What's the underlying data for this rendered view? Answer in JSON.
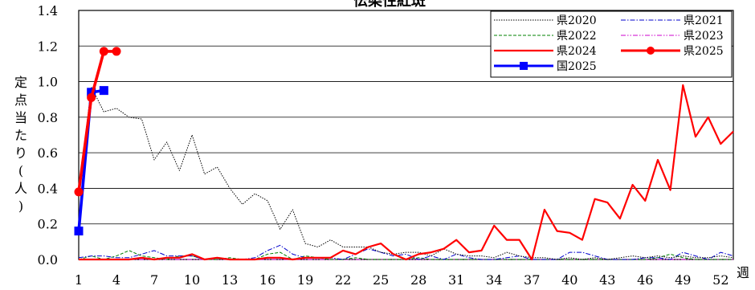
{
  "chart_data": {
    "type": "line",
    "title": "伝染性紅斑",
    "ylabel": "定点当たり(人)",
    "xlabel": "週",
    "ylim": [
      0,
      1.4
    ],
    "xlim": [
      1,
      53
    ],
    "y_ticks": [
      "0.0",
      "0.2",
      "0.4",
      "0.6",
      "0.8",
      "1.0",
      "1.2",
      "1.4"
    ],
    "x_ticks": [
      "1",
      "4",
      "7",
      "10",
      "13",
      "16",
      "19",
      "22",
      "25",
      "28",
      "31",
      "34",
      "37",
      "40",
      "43",
      "46",
      "49",
      "52"
    ],
    "grid": true,
    "legend_position": "top-right",
    "series": [
      {
        "name": "県2020",
        "color": "#000000",
        "style": "dotted-thin",
        "x": [
          1,
          2,
          3,
          4,
          5,
          6,
          7,
          8,
          9,
          10,
          11,
          12,
          13,
          14,
          15,
          16,
          17,
          18,
          19,
          20,
          21,
          22,
          23,
          24,
          25,
          26,
          27,
          28,
          29,
          30,
          31,
          32,
          33,
          34,
          35,
          36,
          37,
          38,
          39,
          40,
          41,
          42,
          43,
          44,
          45,
          46,
          47,
          48,
          49,
          50,
          51,
          52,
          53
        ],
        "y": [
          0.38,
          0.97,
          0.83,
          0.85,
          0.8,
          0.79,
          0.56,
          0.66,
          0.5,
          0.7,
          0.48,
          0.52,
          0.4,
          0.31,
          0.37,
          0.33,
          0.17,
          0.28,
          0.09,
          0.07,
          0.11,
          0.07,
          0.07,
          0.07,
          0.04,
          0.03,
          0.04,
          0.04,
          0.02,
          0.06,
          0.03,
          0.02,
          0.02,
          0.01,
          0.04,
          0.02,
          0.01,
          0.01,
          0.0,
          0.01,
          0.0,
          0.01,
          0.0,
          0.01,
          0.02,
          0.01,
          0.02,
          0.01,
          0.02,
          0.01,
          0.01,
          0.02,
          0.01
        ]
      },
      {
        "name": "県2021",
        "color": "#0000cc",
        "style": "dashdot-thin",
        "x": [
          1,
          2,
          3,
          4,
          5,
          6,
          7,
          8,
          9,
          10,
          11,
          12,
          13,
          14,
          15,
          16,
          17,
          18,
          19,
          20,
          21,
          22,
          23,
          24,
          25,
          26,
          27,
          28,
          29,
          30,
          31,
          32,
          33,
          34,
          35,
          36,
          37,
          38,
          39,
          40,
          41,
          42,
          43,
          44,
          45,
          46,
          47,
          48,
          49,
          50,
          51,
          52,
          53
        ],
        "y": [
          0.01,
          0.02,
          0.02,
          0.01,
          0.01,
          0.03,
          0.05,
          0.02,
          0.02,
          0.02,
          0.0,
          0.01,
          0.0,
          0.0,
          0.01,
          0.05,
          0.08,
          0.03,
          0.01,
          0.01,
          0.01,
          0.0,
          0.03,
          0.06,
          0.04,
          0.02,
          0.03,
          0.0,
          0.02,
          0.0,
          0.03,
          0.01,
          0.0,
          0.0,
          0.01,
          0.02,
          0.0,
          0.0,
          0.0,
          0.04,
          0.04,
          0.02,
          0.0,
          0.0,
          0.0,
          0.01,
          0.01,
          0.0,
          0.04,
          0.02,
          0.0,
          0.04,
          0.02
        ]
      },
      {
        "name": "県2022",
        "color": "#008000",
        "style": "dashed-thin",
        "x": [
          1,
          2,
          3,
          4,
          5,
          6,
          7,
          8,
          9,
          10,
          11,
          12,
          13,
          14,
          15,
          16,
          17,
          18,
          19,
          20,
          21,
          22,
          23,
          24,
          25,
          26,
          27,
          28,
          29,
          30,
          31,
          32,
          33,
          34,
          35,
          36,
          37,
          38,
          39,
          40,
          41,
          42,
          43,
          44,
          45,
          46,
          47,
          48,
          49,
          50,
          51,
          52,
          53
        ],
        "y": [
          0.0,
          0.02,
          0.0,
          0.02,
          0.05,
          0.02,
          0.01,
          0.0,
          0.02,
          0.02,
          0.0,
          0.0,
          0.01,
          0.0,
          0.0,
          0.03,
          0.04,
          0.0,
          0.02,
          0.01,
          0.0,
          0.0,
          0.01,
          0.0,
          0.0,
          0.0,
          0.0,
          0.01,
          0.0,
          0.0,
          0.0,
          0.0,
          0.0,
          0.0,
          0.0,
          0.0,
          0.0,
          0.0,
          0.0,
          0.0,
          0.0,
          0.0,
          0.0,
          0.0,
          0.0,
          0.0,
          0.01,
          0.03,
          0.01,
          0.0,
          0.0,
          0.0,
          0.0
        ]
      },
      {
        "name": "県2023",
        "color": "#cc00cc",
        "style": "dashdotdot-thin",
        "x": [
          1,
          2,
          3,
          4,
          5,
          6,
          7,
          8,
          9,
          10,
          11,
          12,
          13,
          14,
          15,
          16,
          17,
          18,
          19,
          20,
          21,
          22,
          23,
          24,
          25,
          26,
          27,
          28,
          29,
          30,
          31,
          32,
          33,
          34,
          35,
          36,
          37,
          38,
          39,
          40,
          41,
          42,
          43,
          44,
          45,
          46,
          47,
          48,
          49,
          50,
          51,
          52,
          53
        ],
        "y": [
          0.0,
          0.0,
          0.0,
          0.0,
          0.0,
          0.0,
          0.0,
          0.0,
          0.0,
          0.0,
          0.0,
          0.0,
          0.0,
          0.0,
          0.0,
          0.0,
          0.0,
          0.0,
          0.0,
          0.0,
          0.0,
          0.0,
          0.0,
          0.0,
          0.0,
          0.0,
          0.0,
          0.0,
          0.0,
          0.0,
          0.0,
          0.0,
          0.0,
          0.0,
          0.0,
          0.0,
          0.0,
          0.0,
          0.0,
          0.0,
          0.0,
          0.0,
          0.0,
          0.0,
          0.0,
          0.0,
          0.0,
          0.0,
          0.0,
          0.0,
          0.0,
          0.0,
          0.0
        ]
      },
      {
        "name": "県2024",
        "color": "#ff0000",
        "style": "solid-medium",
        "x": [
          1,
          2,
          3,
          4,
          5,
          6,
          7,
          8,
          9,
          10,
          11,
          12,
          13,
          14,
          15,
          16,
          17,
          18,
          19,
          20,
          21,
          22,
          23,
          24,
          25,
          26,
          27,
          28,
          29,
          30,
          31,
          32,
          33,
          34,
          35,
          36,
          37,
          38,
          39,
          40,
          41,
          42,
          43,
          44,
          45,
          46,
          47,
          48,
          49,
          50,
          51,
          52,
          53
        ],
        "y": [
          0.0,
          0.0,
          0.0,
          0.0,
          0.0,
          0.01,
          0.0,
          0.01,
          0.01,
          0.03,
          0.0,
          0.01,
          0.0,
          0.0,
          0.0,
          0.01,
          0.01,
          0.0,
          0.01,
          0.01,
          0.01,
          0.05,
          0.03,
          0.07,
          0.09,
          0.03,
          0.0,
          0.03,
          0.04,
          0.06,
          0.11,
          0.04,
          0.05,
          0.19,
          0.11,
          0.11,
          0.0,
          0.28,
          0.16,
          0.15,
          0.11,
          0.34,
          0.32,
          0.23,
          0.42,
          0.33,
          0.56,
          0.39,
          0.98,
          0.69,
          0.8,
          0.65,
          0.72
        ]
      },
      {
        "name": "県2025",
        "color": "#ff0000",
        "style": "solid-thick-marker",
        "x": [
          1,
          2,
          3,
          4
        ],
        "y": [
          0.38,
          0.91,
          1.17,
          1.17
        ]
      },
      {
        "name": "国2025",
        "color": "#0000ff",
        "style": "solid-thick-square",
        "x": [
          1,
          2,
          3
        ],
        "y": [
          0.16,
          0.94,
          0.95
        ]
      }
    ]
  }
}
